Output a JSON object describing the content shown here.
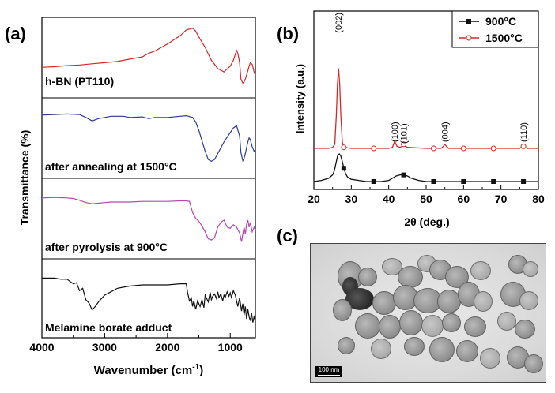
{
  "chart_data": [
    {
      "panel": "(a)",
      "type": "line",
      "xlabel": "Wavenumber (cm",
      "xlabel_sup": "-1",
      "xlabel_end": ")",
      "ylabel": "Transmittance (%)",
      "xlim": [
        4000,
        600
      ],
      "xticks": [
        "4000",
        "3000",
        "2000",
        "1000"
      ],
      "xtick_values": [
        4000,
        3000,
        2000,
        1000
      ],
      "series": [
        {
          "name": "h-BN (PT110)",
          "color": "#d62728",
          "x": [
            4000,
            3800,
            3600,
            3400,
            3200,
            3000,
            2800,
            2600,
            2400,
            2300,
            2200,
            2000,
            1800,
            1700,
            1600,
            1550,
            1500,
            1400,
            1300,
            1200,
            1100,
            1000,
            950,
            920,
            900,
            880,
            850,
            830,
            800,
            780,
            760,
            740,
            720,
            700,
            680,
            650,
            620,
            600
          ],
          "y": [
            0.28,
            0.29,
            0.31,
            0.32,
            0.34,
            0.36,
            0.38,
            0.42,
            0.46,
            0.52,
            0.56,
            0.68,
            0.82,
            0.92,
            0.95,
            0.9,
            0.8,
            0.62,
            0.4,
            0.26,
            0.2,
            0.3,
            0.4,
            0.5,
            0.57,
            0.52,
            0.36,
            0.08,
            0.01,
            0.03,
            0.08,
            0.15,
            0.22,
            0.3,
            0.36,
            0.33,
            0.2,
            0.14
          ]
        },
        {
          "name": "after annealing at 1500°C",
          "color": "#2a3b9c",
          "x": [
            4000,
            3800,
            3600,
            3400,
            3300,
            3200,
            3100,
            3000,
            2900,
            2800,
            2700,
            2600,
            2400,
            2300,
            2200,
            2000,
            1800,
            1700,
            1600,
            1550,
            1500,
            1450,
            1400,
            1350,
            1300,
            1250,
            1200,
            1100,
            1000,
            950,
            900,
            850,
            830,
            800,
            780,
            760,
            740,
            720,
            700,
            680,
            650,
            620,
            600
          ],
          "y": [
            0.84,
            0.85,
            0.86,
            0.85,
            0.8,
            0.74,
            0.78,
            0.8,
            0.82,
            0.82,
            0.82,
            0.8,
            0.81,
            0.78,
            0.8,
            0.8,
            0.82,
            0.83,
            0.8,
            0.72,
            0.58,
            0.4,
            0.22,
            0.08,
            0.05,
            0.08,
            0.18,
            0.38,
            0.54,
            0.62,
            0.66,
            0.48,
            0.2,
            0.06,
            0.1,
            0.18,
            0.28,
            0.38,
            0.45,
            0.42,
            0.3,
            0.22,
            0.25
          ]
        },
        {
          "name": "after pyrolysis at 900°C",
          "color": "#b645b4",
          "x": [
            4000,
            3800,
            3600,
            3500,
            3400,
            3300,
            3200,
            3100,
            3000,
            2900,
            2800,
            2600,
            2400,
            2200,
            2000,
            1800,
            1700,
            1650,
            1600,
            1550,
            1500,
            1450,
            1400,
            1350,
            1300,
            1250,
            1200,
            1150,
            1100,
            1050,
            1000,
            950,
            900,
            850,
            820,
            800,
            780,
            760,
            740,
            720,
            700,
            680,
            650,
            620,
            600
          ],
          "y": [
            0.8,
            0.81,
            0.8,
            0.79,
            0.76,
            0.72,
            0.7,
            0.71,
            0.72,
            0.73,
            0.73,
            0.73,
            0.74,
            0.74,
            0.74,
            0.75,
            0.75,
            0.74,
            0.55,
            0.45,
            0.4,
            0.32,
            0.22,
            0.1,
            0.08,
            0.12,
            0.3,
            0.38,
            0.42,
            0.3,
            0.28,
            0.34,
            0.3,
            0.2,
            0.05,
            0.18,
            0.3,
            0.18,
            0.35,
            0.42,
            0.3,
            0.38,
            0.22,
            0.3,
            0.25
          ]
        },
        {
          "name": "Melamine borate adduct",
          "color": "#111111",
          "x": [
            4000,
            3800,
            3700,
            3600,
            3500,
            3450,
            3400,
            3350,
            3300,
            3250,
            3200,
            3150,
            3100,
            3050,
            3000,
            2900,
            2800,
            2700,
            2600,
            2400,
            2200,
            2000,
            1800,
            1700,
            1680,
            1650,
            1620,
            1600,
            1580,
            1550,
            1520,
            1500,
            1480,
            1450,
            1420,
            1400,
            1380,
            1350,
            1320,
            1300,
            1280,
            1250,
            1220,
            1200,
            1180,
            1150,
            1120,
            1100,
            1080,
            1050,
            1020,
            1000,
            980,
            950,
            920,
            900,
            880,
            850,
            820,
            800,
            780,
            760,
            740,
            720,
            700,
            680,
            660,
            640,
            620,
            600
          ],
          "y": [
            0.8,
            0.8,
            0.78,
            0.78,
            0.7,
            0.72,
            0.58,
            0.62,
            0.42,
            0.36,
            0.24,
            0.3,
            0.38,
            0.44,
            0.5,
            0.56,
            0.62,
            0.64,
            0.66,
            0.68,
            0.68,
            0.68,
            0.7,
            0.7,
            0.55,
            0.4,
            0.45,
            0.3,
            0.4,
            0.25,
            0.4,
            0.35,
            0.3,
            0.42,
            0.28,
            0.5,
            0.45,
            0.38,
            0.55,
            0.42,
            0.48,
            0.52,
            0.44,
            0.56,
            0.46,
            0.52,
            0.4,
            0.5,
            0.46,
            0.56,
            0.48,
            0.54,
            0.46,
            0.58,
            0.5,
            0.4,
            0.3,
            0.45,
            0.22,
            0.35,
            0.15,
            0.3,
            0.08,
            0.25,
            0.12,
            0.05,
            0.18,
            0.02,
            0.12,
            0.05
          ]
        }
      ]
    },
    {
      "panel": "(b)",
      "type": "line",
      "xlabel": "2θ (deg.)",
      "ylabel": "Intensity (a.u.)",
      "xlim": [
        20,
        80
      ],
      "xticks": [
        "20",
        "30",
        "40",
        "50",
        "60",
        "70",
        "80"
      ],
      "xtick_values": [
        20,
        30,
        40,
        50,
        60,
        70,
        80
      ],
      "legend_position": "top-right",
      "annotations": [
        "(002)",
        "(100)",
        "(101)",
        "(004)",
        "(110)"
      ],
      "annotation_x": [
        26.6,
        41.6,
        44.0,
        55.0,
        76.0
      ],
      "series": [
        {
          "name": "900°C",
          "color": "#111111",
          "marker": "square-filled",
          "x": [
            20,
            22,
            24,
            25,
            25.5,
            26,
            26.4,
            26.8,
            27.2,
            27.6,
            28,
            28.5,
            29,
            30,
            32,
            34,
            36,
            38,
            40,
            41,
            42,
            43,
            44,
            45,
            46,
            48,
            50,
            52,
            54,
            56,
            60,
            64,
            68,
            72,
            76,
            80
          ],
          "y": [
            0.02,
            0.03,
            0.05,
            0.08,
            0.12,
            0.2,
            0.26,
            0.27,
            0.25,
            0.2,
            0.14,
            0.09,
            0.06,
            0.04,
            0.03,
            0.02,
            0.02,
            0.02,
            0.03,
            0.05,
            0.07,
            0.08,
            0.08,
            0.07,
            0.05,
            0.03,
            0.02,
            0.02,
            0.02,
            0.02,
            0.02,
            0.02,
            0.02,
            0.02,
            0.02,
            0.02
          ],
          "marker_x": [
            28,
            36,
            44,
            52,
            60,
            68,
            76
          ]
        },
        {
          "name": "1500°C",
          "color": "#d62728",
          "marker": "circle-open",
          "x": [
            20,
            22,
            24,
            25,
            25.6,
            26.0,
            26.3,
            26.6,
            26.9,
            27.2,
            27.6,
            28,
            30,
            35,
            40,
            41,
            41.6,
            42.2,
            43,
            43.6,
            44.0,
            44.4,
            45,
            50,
            54,
            54.6,
            55.0,
            55.4,
            56,
            60,
            70,
            75,
            76,
            77,
            80
          ],
          "y": [
            0.38,
            0.38,
            0.38,
            0.39,
            0.42,
            0.7,
            1.0,
            1.16,
            1.0,
            0.7,
            0.44,
            0.39,
            0.38,
            0.38,
            0.38,
            0.39,
            0.45,
            0.4,
            0.39,
            0.4,
            0.42,
            0.4,
            0.39,
            0.38,
            0.38,
            0.4,
            0.42,
            0.4,
            0.38,
            0.38,
            0.38,
            0.38,
            0.4,
            0.38,
            0.38
          ],
          "marker_x": [
            28,
            36,
            44,
            52,
            60,
            68,
            76
          ]
        }
      ]
    }
  ],
  "panel_c": {
    "label": "(c)",
    "scale_bar": "100 nm"
  }
}
